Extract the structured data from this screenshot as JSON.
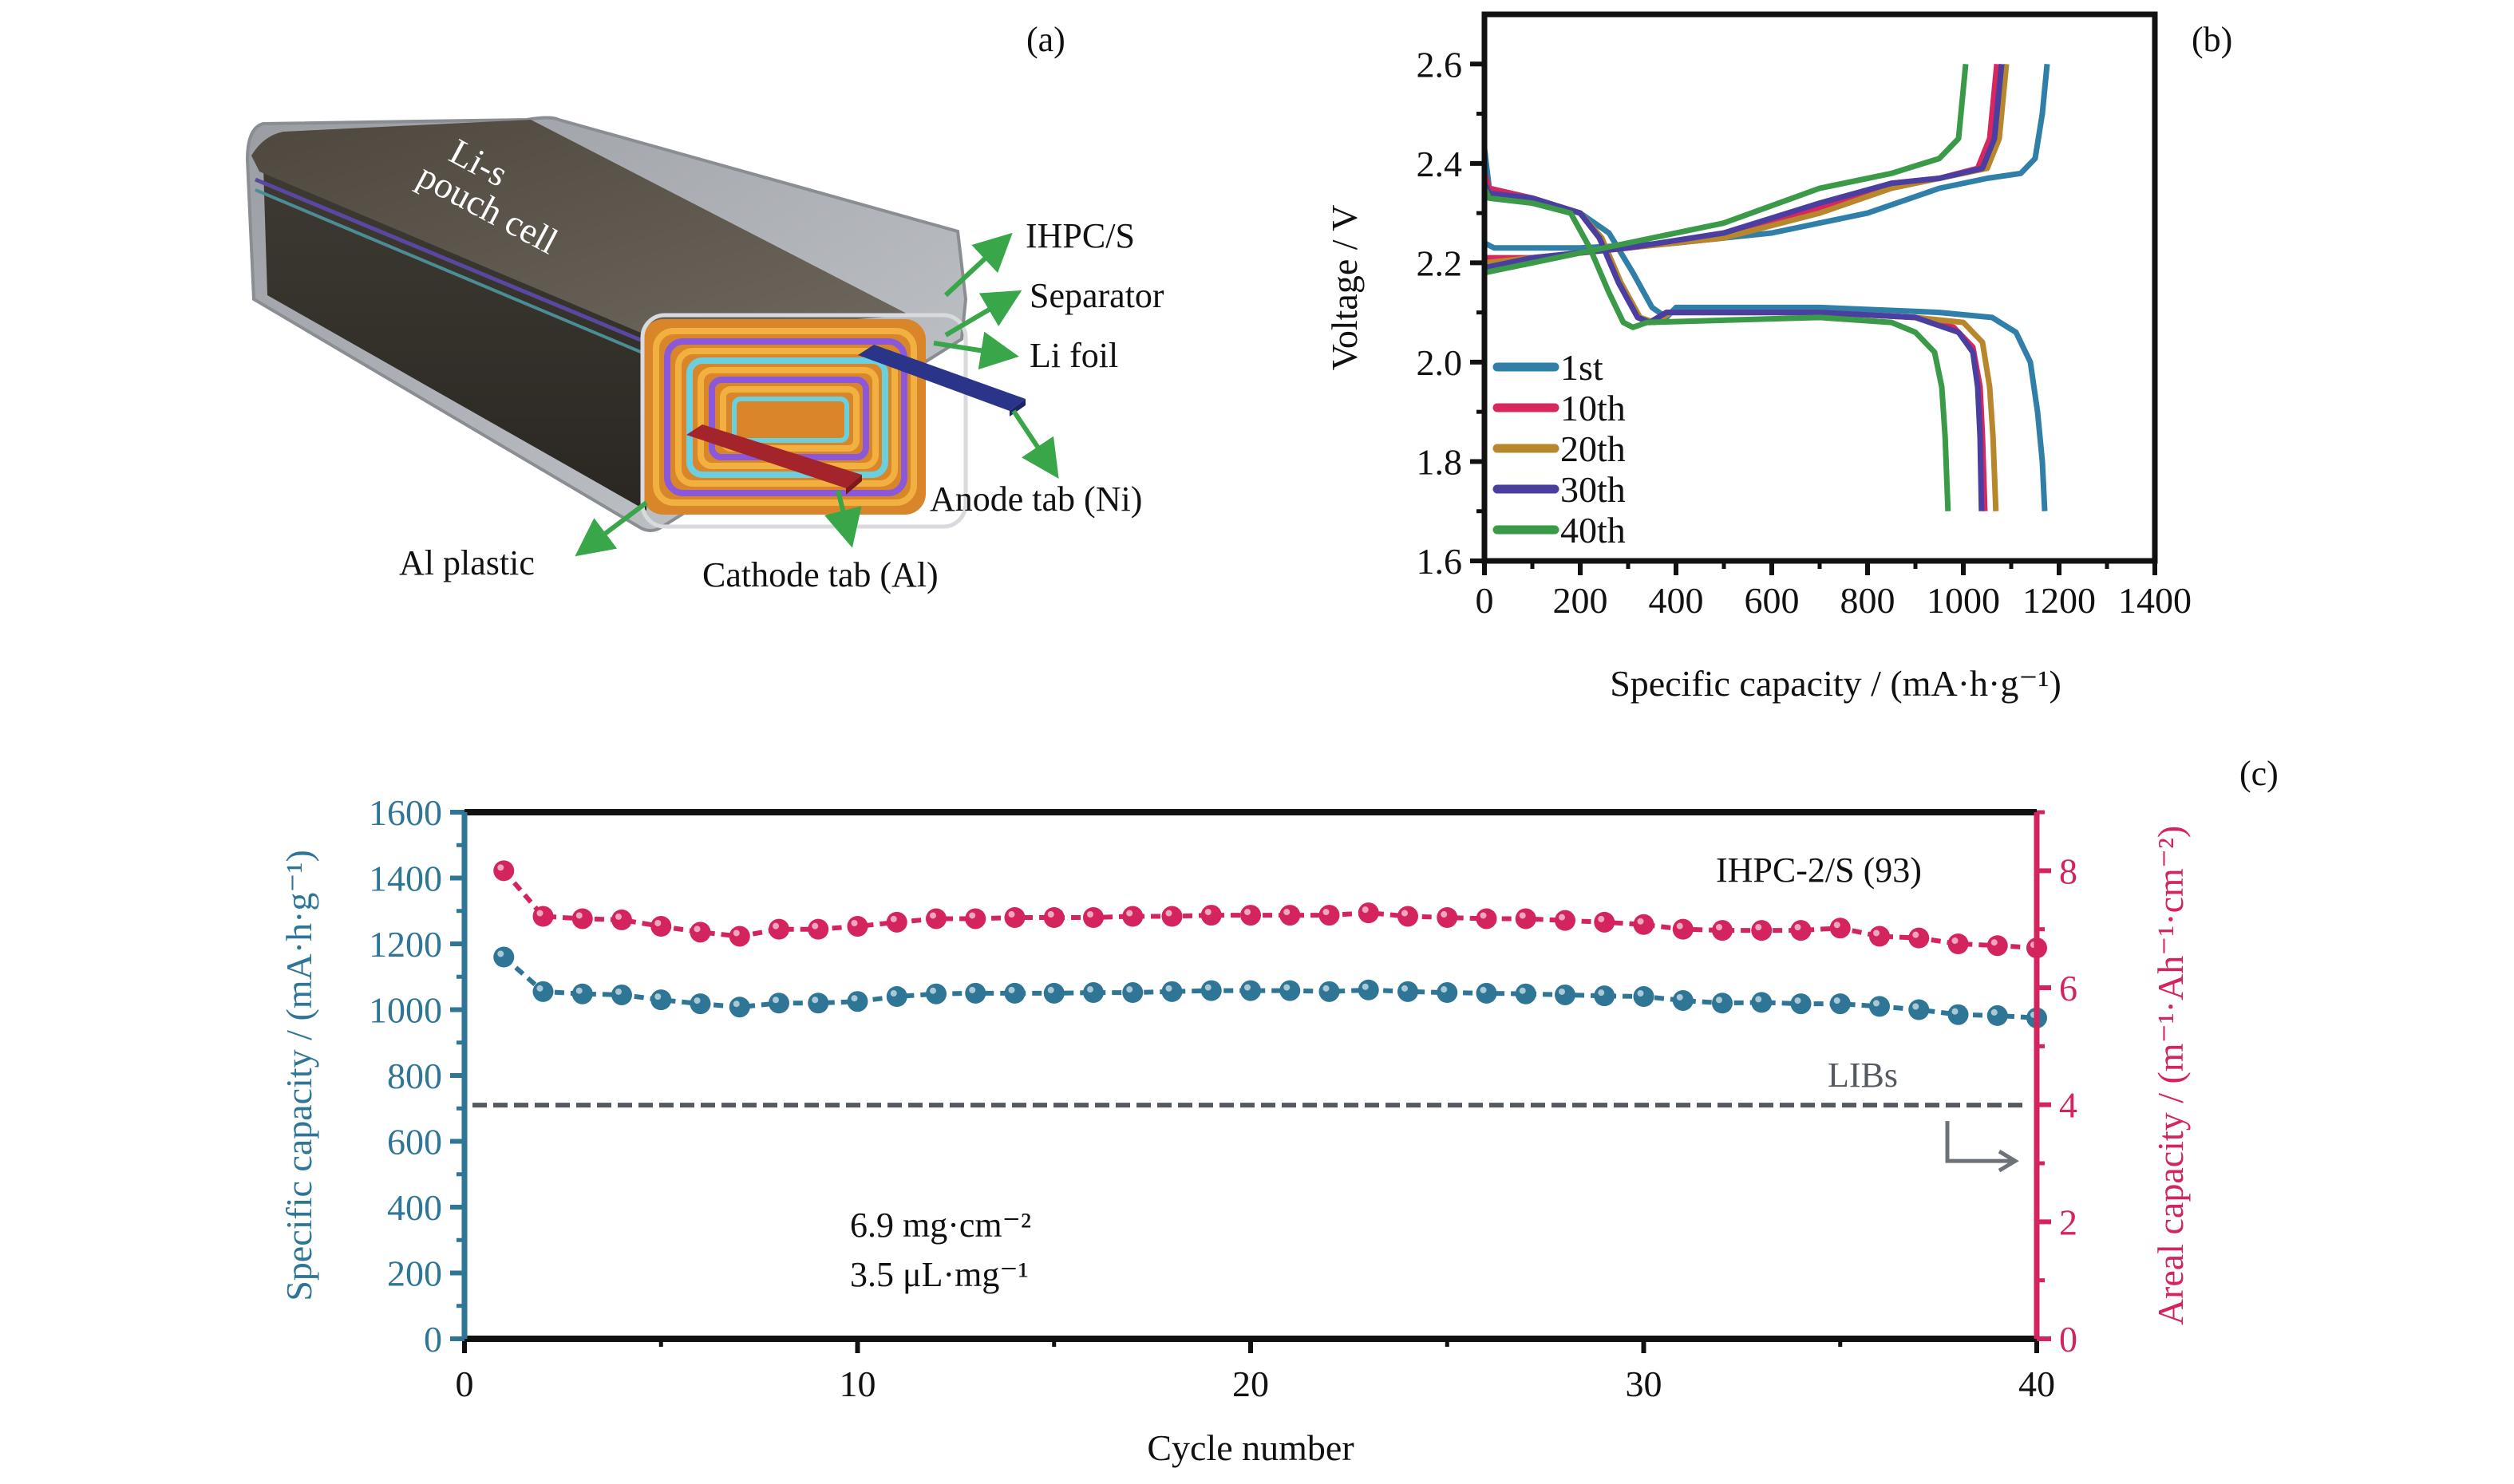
{
  "panel_labels": {
    "a": "(a)",
    "b": "(b)",
    "c": "(c)"
  },
  "panel_a": {
    "title_line1": "Li-s",
    "title_line2": "pouch cell",
    "labels": {
      "ihpc": "IHPC/S",
      "separator": "Separator",
      "li_foil": "Li foil",
      "anode_tab": "Anode tab (Ni)",
      "cathode_tab": "Cathode tab (Al)",
      "al_plastic": "Al plastic"
    },
    "colors": {
      "casing": "#5f5a50",
      "electrode": "#e69a28",
      "separator": "#7a4fc0",
      "li_foil": "#5fc7d6",
      "anode_tab": "#2a3488",
      "cathode_tab": "#a3242a",
      "arrow": "#3aa64a"
    }
  },
  "chart_data": [
    {
      "id": "b",
      "type": "line",
      "title": "",
      "xlabel": "Specific capacity / (mA·h·g⁻¹)",
      "ylabel": "Voltage / V",
      "xlim": [
        0,
        1400
      ],
      "ylim": [
        1.6,
        2.7
      ],
      "xticks": [
        0,
        200,
        400,
        600,
        800,
        1000,
        1200,
        1400
      ],
      "yticks": [
        1.6,
        1.8,
        2.0,
        2.2,
        2.4,
        2.6
      ],
      "xtick_labels": [
        "0",
        "200",
        "400",
        "600",
        "800",
        "1000",
        "1200",
        "1400"
      ],
      "ytick_labels": [
        "1.6",
        "1.8",
        "2.0",
        "2.2",
        "2.4",
        "2.6"
      ],
      "legend_position": "bottom-left",
      "series": [
        {
          "name": "1st",
          "color": "#2f7fa8",
          "discharge": [
            [
              0,
              2.43
            ],
            [
              10,
              2.35
            ],
            [
              100,
              2.33
            ],
            [
              200,
              2.3
            ],
            [
              260,
              2.26
            ],
            [
              310,
              2.18
            ],
            [
              350,
              2.11
            ],
            [
              380,
              2.09
            ],
            [
              400,
              2.11
            ],
            [
              700,
              2.11
            ],
            [
              950,
              2.1
            ],
            [
              1060,
              2.09
            ],
            [
              1110,
              2.06
            ],
            [
              1140,
              2.0
            ],
            [
              1155,
              1.9
            ],
            [
              1165,
              1.8
            ],
            [
              1170,
              1.7
            ]
          ],
          "charge": [
            [
              0,
              2.24
            ],
            [
              20,
              2.23
            ],
            [
              200,
              2.23
            ],
            [
              400,
              2.24
            ],
            [
              600,
              2.26
            ],
            [
              800,
              2.3
            ],
            [
              950,
              2.35
            ],
            [
              1050,
              2.37
            ],
            [
              1120,
              2.38
            ],
            [
              1150,
              2.41
            ],
            [
              1165,
              2.5
            ],
            [
              1175,
              2.6
            ]
          ]
        },
        {
          "name": "10th",
          "color": "#d8275e",
          "discharge": [
            [
              0,
              2.38
            ],
            [
              10,
              2.35
            ],
            [
              100,
              2.33
            ],
            [
              200,
              2.3
            ],
            [
              240,
              2.25
            ],
            [
              280,
              2.16
            ],
            [
              320,
              2.09
            ],
            [
              345,
              2.08
            ],
            [
              380,
              2.1
            ],
            [
              700,
              2.1
            ],
            [
              900,
              2.09
            ],
            [
              980,
              2.07
            ],
            [
              1020,
              2.03
            ],
            [
              1035,
              1.95
            ],
            [
              1040,
              1.85
            ],
            [
              1045,
              1.7
            ]
          ],
          "charge": [
            [
              0,
              2.21
            ],
            [
              100,
              2.21
            ],
            [
              300,
              2.23
            ],
            [
              500,
              2.25
            ],
            [
              700,
              2.31
            ],
            [
              850,
              2.36
            ],
            [
              950,
              2.37
            ],
            [
              1030,
              2.39
            ],
            [
              1055,
              2.45
            ],
            [
              1065,
              2.55
            ],
            [
              1070,
              2.6
            ]
          ]
        },
        {
          "name": "20th",
          "color": "#b8862b",
          "discharge": [
            [
              0,
              2.36
            ],
            [
              10,
              2.34
            ],
            [
              100,
              2.33
            ],
            [
              200,
              2.3
            ],
            [
              245,
              2.25
            ],
            [
              285,
              2.16
            ],
            [
              325,
              2.09
            ],
            [
              355,
              2.08
            ],
            [
              390,
              2.1
            ],
            [
              700,
              2.1
            ],
            [
              900,
              2.09
            ],
            [
              1000,
              2.08
            ],
            [
              1040,
              2.04
            ],
            [
              1055,
              1.95
            ],
            [
              1062,
              1.85
            ],
            [
              1068,
              1.7
            ]
          ],
          "charge": [
            [
              0,
              2.2
            ],
            [
              100,
              2.21
            ],
            [
              300,
              2.23
            ],
            [
              500,
              2.25
            ],
            [
              700,
              2.3
            ],
            [
              850,
              2.35
            ],
            [
              950,
              2.37
            ],
            [
              1050,
              2.39
            ],
            [
              1075,
              2.45
            ],
            [
              1085,
              2.55
            ],
            [
              1090,
              2.6
            ]
          ]
        },
        {
          "name": "30th",
          "color": "#4a3fa0",
          "discharge": [
            [
              0,
              2.36
            ],
            [
              10,
              2.34
            ],
            [
              100,
              2.33
            ],
            [
              200,
              2.3
            ],
            [
              240,
              2.25
            ],
            [
              280,
              2.16
            ],
            [
              320,
              2.09
            ],
            [
              345,
              2.08
            ],
            [
              380,
              2.1
            ],
            [
              700,
              2.1
            ],
            [
              900,
              2.09
            ],
            [
              990,
              2.06
            ],
            [
              1020,
              2.02
            ],
            [
              1030,
              1.95
            ],
            [
              1035,
              1.85
            ],
            [
              1038,
              1.7
            ]
          ],
          "charge": [
            [
              0,
              2.19
            ],
            [
              100,
              2.21
            ],
            [
              300,
              2.23
            ],
            [
              500,
              2.26
            ],
            [
              700,
              2.32
            ],
            [
              850,
              2.36
            ],
            [
              950,
              2.37
            ],
            [
              1040,
              2.39
            ],
            [
              1065,
              2.45
            ],
            [
              1075,
              2.55
            ],
            [
              1080,
              2.6
            ]
          ]
        },
        {
          "name": "40th",
          "color": "#3a9a48",
          "discharge": [
            [
              0,
              2.35
            ],
            [
              10,
              2.33
            ],
            [
              100,
              2.32
            ],
            [
              180,
              2.3
            ],
            [
              220,
              2.23
            ],
            [
              260,
              2.14
            ],
            [
              290,
              2.08
            ],
            [
              310,
              2.07
            ],
            [
              340,
              2.08
            ],
            [
              700,
              2.09
            ],
            [
              850,
              2.08
            ],
            [
              900,
              2.06
            ],
            [
              940,
              2.02
            ],
            [
              955,
              1.95
            ],
            [
              962,
              1.85
            ],
            [
              968,
              1.7
            ]
          ],
          "charge": [
            [
              0,
              2.18
            ],
            [
              100,
              2.2
            ],
            [
              300,
              2.24
            ],
            [
              500,
              2.28
            ],
            [
              700,
              2.35
            ],
            [
              850,
              2.38
            ],
            [
              950,
              2.41
            ],
            [
              990,
              2.45
            ],
            [
              1000,
              2.55
            ],
            [
              1005,
              2.6
            ]
          ]
        }
      ]
    },
    {
      "id": "c",
      "type": "scatter",
      "title": "",
      "annotation_sample": "IHPC-2/S (93)",
      "annotation_loading_1": "6.9 mg·cm⁻²",
      "annotation_loading_2": "3.5 μL·mg⁻¹",
      "annotation_reference": "LIBs",
      "xlabel": "Cycle number",
      "ylabel_left": "Specific capacity / (mA·h·g⁻¹)",
      "ylabel_right": "Areal capacity / (m⁻¹·Ah⁻¹·cm⁻²)",
      "xlim": [
        0,
        40
      ],
      "ylim_left": [
        0,
        1600
      ],
      "ylim_right": [
        0,
        9
      ],
      "xticks": [
        0,
        10,
        20,
        30,
        40
      ],
      "yticks_left": [
        0,
        200,
        400,
        600,
        800,
        1000,
        1200,
        1400,
        1600
      ],
      "yticks_right": [
        0,
        2,
        4,
        6,
        8
      ],
      "reference_line_left": 710,
      "colors": {
        "left": "#2e7596",
        "right": "#d4245e",
        "reference": "#555a60"
      },
      "x": [
        1,
        2,
        3,
        4,
        5,
        6,
        7,
        8,
        9,
        10,
        11,
        12,
        13,
        14,
        15,
        16,
        17,
        18,
        19,
        20,
        21,
        22,
        23,
        24,
        25,
        26,
        27,
        28,
        29,
        30,
        31,
        32,
        33,
        34,
        35,
        36,
        37,
        38,
        39,
        40
      ],
      "series": [
        {
          "name": "Specific capacity",
          "axis": "left",
          "values": [
            1160,
            1055,
            1048,
            1045,
            1030,
            1018,
            1008,
            1020,
            1020,
            1025,
            1040,
            1048,
            1050,
            1050,
            1050,
            1052,
            1052,
            1055,
            1058,
            1058,
            1058,
            1055,
            1060,
            1055,
            1052,
            1050,
            1048,
            1045,
            1042,
            1040,
            1028,
            1020,
            1022,
            1018,
            1018,
            1010,
            1000,
            985,
            982,
            975
          ]
        },
        {
          "name": "Areal capacity",
          "axis": "right",
          "values": [
            8.0,
            7.22,
            7.18,
            7.16,
            7.05,
            6.95,
            6.88,
            7.0,
            7.0,
            7.05,
            7.12,
            7.18,
            7.18,
            7.2,
            7.2,
            7.2,
            7.22,
            7.22,
            7.24,
            7.24,
            7.24,
            7.24,
            7.28,
            7.22,
            7.2,
            7.18,
            7.18,
            7.15,
            7.12,
            7.08,
            7.0,
            6.98,
            6.98,
            6.98,
            7.02,
            6.88,
            6.85,
            6.75,
            6.72,
            6.68
          ]
        }
      ]
    }
  ]
}
